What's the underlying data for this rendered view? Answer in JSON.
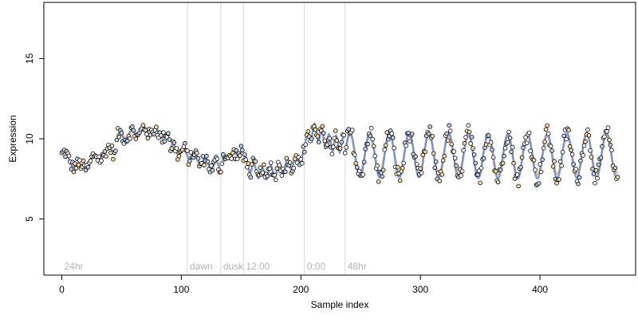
{
  "chart_data": {
    "type": "scatter",
    "title": "",
    "xlabel": "Sample index",
    "ylabel": "Expression",
    "xlim": [
      -15,
      480
    ],
    "ylim": [
      1.5,
      18.5
    ],
    "x_ticks": [
      0,
      100,
      200,
      300,
      400
    ],
    "y_ticks": [
      5,
      10,
      15
    ],
    "grid": false,
    "legend": "none",
    "colors": {
      "fit_line": "#6f8fcf",
      "fit_line_alt": "#f0b060",
      "point_light": "#ffffff",
      "point_orange": "#fad9a8",
      "point_blue": "#bcd0ec",
      "region_line": "#d9d9d9",
      "region_label": "#b3b3b3"
    },
    "regions": [
      {
        "label": "24hr",
        "start": 0
      },
      {
        "label": "dawn",
        "start": 105
      },
      {
        "label": "dusk",
        "start": 133
      },
      {
        "label": "12:00",
        "start": 152
      },
      {
        "label": "0:00",
        "start": 203
      },
      {
        "label": "48hr",
        "start": 237
      }
    ],
    "segments": [
      {
        "from": 0,
        "to": 45,
        "trend": [
          [
            0,
            9.0
          ],
          [
            10,
            8.5
          ],
          [
            15,
            8.1
          ],
          [
            25,
            8.6
          ],
          [
            35,
            9.1
          ],
          [
            45,
            9.3
          ]
        ],
        "amp": 0.3,
        "period": 12
      },
      {
        "from": 46,
        "to": 90,
        "trend": [
          [
            46,
            10.1
          ],
          [
            60,
            10.3
          ],
          [
            70,
            10.5
          ],
          [
            80,
            10.4
          ],
          [
            90,
            10.0
          ]
        ],
        "amp": 0.25,
        "period": 10
      },
      {
        "from": 91,
        "to": 133,
        "trend": [
          [
            91,
            9.4
          ],
          [
            100,
            9.2
          ],
          [
            110,
            8.9
          ],
          [
            120,
            8.5
          ],
          [
            133,
            8.2
          ]
        ],
        "amp": 0.3,
        "period": 9
      },
      {
        "from": 134,
        "to": 151,
        "trend": [
          [
            134,
            8.8
          ],
          [
            142,
            8.9
          ],
          [
            151,
            9.2
          ]
        ],
        "amp": 0.15,
        "period": 8
      },
      {
        "from": 152,
        "to": 203,
        "trend": [
          [
            152,
            8.6
          ],
          [
            160,
            8.1
          ],
          [
            168,
            7.8
          ],
          [
            178,
            8.0
          ],
          [
            190,
            8.4
          ],
          [
            203,
            8.9
          ]
        ],
        "amp": 0.4,
        "period": 7
      },
      {
        "from": 204,
        "to": 236,
        "trend": [
          [
            204,
            9.8
          ],
          [
            210,
            10.5
          ],
          [
            215,
            10.3
          ],
          [
            222,
            9.8
          ],
          [
            236,
            9.6
          ]
        ],
        "amp": 0.5,
        "period": 6
      },
      {
        "from": 237,
        "to": 465,
        "trend": [
          [
            237,
            9.0
          ],
          [
            300,
            9.0
          ],
          [
            380,
            8.9
          ],
          [
            465,
            9.0
          ]
        ],
        "amp": 1.4,
        "period": 16.5
      }
    ]
  }
}
